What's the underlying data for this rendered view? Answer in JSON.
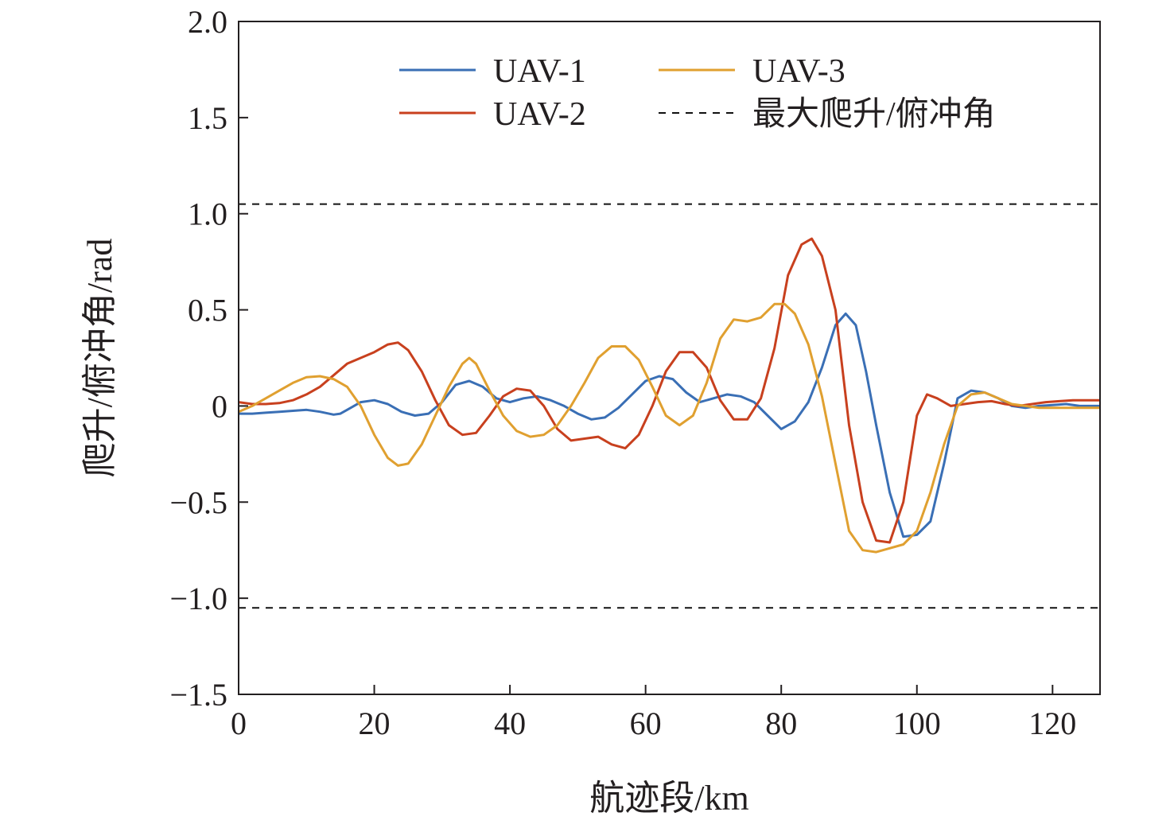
{
  "chart_data": {
    "type": "line",
    "title": "",
    "xlabel": "航迹段/km",
    "ylabel": "爬升/俯冲角/rad",
    "xlim": [
      0,
      127
    ],
    "ylim": [
      -1.5,
      2.0
    ],
    "x_ticks": [
      0,
      20,
      40,
      60,
      80,
      100,
      120
    ],
    "x_tick_labels": [
      "0",
      "20",
      "40",
      "60",
      "80",
      "100",
      "120"
    ],
    "y_ticks": [
      2.0,
      1.5,
      1.0,
      0.5,
      0,
      -0.5,
      -1.0,
      -1.5
    ],
    "y_tick_labels": [
      "2.0",
      "1.5",
      "1.0",
      "0.5",
      "0",
      "−0.5",
      "−1.0",
      "−1.5"
    ],
    "grid": false,
    "legend_position": "top-right",
    "series": [
      {
        "name": "UAV-1",
        "color": "#3a6fb5",
        "style": "solid",
        "x": [
          0,
          2,
          4,
          6,
          8,
          10,
          12,
          14,
          15,
          16,
          18,
          20,
          22,
          24,
          26,
          28,
          30,
          32,
          34,
          36,
          38,
          40,
          42,
          44,
          46,
          48,
          50,
          52,
          54,
          56,
          58,
          60,
          62,
          64,
          66,
          68,
          70,
          72,
          74,
          76,
          78,
          80,
          82,
          84,
          86,
          88,
          89.5,
          91,
          92.5,
          94,
          96,
          98,
          100,
          102,
          104,
          106,
          108,
          110,
          112,
          114,
          116,
          118,
          120,
          122,
          124,
          127
        ],
        "y": [
          -0.04,
          -0.04,
          -0.035,
          -0.03,
          -0.025,
          -0.02,
          -0.03,
          -0.045,
          -0.04,
          -0.02,
          0.02,
          0.03,
          0.01,
          -0.03,
          -0.05,
          -0.04,
          0.02,
          0.11,
          0.13,
          0.1,
          0.04,
          0.02,
          0.04,
          0.05,
          0.03,
          0.0,
          -0.04,
          -0.07,
          -0.06,
          -0.01,
          0.06,
          0.13,
          0.155,
          0.14,
          0.07,
          0.02,
          0.04,
          0.06,
          0.05,
          0.02,
          -0.05,
          -0.12,
          -0.08,
          0.02,
          0.2,
          0.42,
          0.48,
          0.42,
          0.18,
          -0.1,
          -0.45,
          -0.68,
          -0.67,
          -0.6,
          -0.3,
          0.04,
          0.08,
          0.07,
          0.04,
          0.0,
          -0.01,
          0.0,
          0.005,
          0.01,
          0.0,
          0.0
        ]
      },
      {
        "name": "UAV-2",
        "color": "#c8401e",
        "style": "solid",
        "x": [
          0,
          2,
          4,
          6,
          8,
          10,
          12,
          14,
          16,
          18,
          20,
          22,
          23.5,
          25,
          27,
          29,
          31,
          33,
          35,
          37,
          39,
          41,
          43,
          45,
          47,
          49,
          51,
          53,
          55,
          57,
          59,
          61,
          63,
          65,
          67,
          69,
          71,
          73,
          75,
          77,
          79,
          81,
          83,
          84.5,
          86,
          88,
          90,
          92,
          94,
          96,
          98,
          100,
          101.5,
          103,
          105,
          107,
          109,
          111,
          113,
          115,
          117,
          119,
          121,
          123,
          127
        ],
        "y": [
          0.02,
          0.01,
          0.01,
          0.015,
          0.03,
          0.06,
          0.1,
          0.16,
          0.22,
          0.25,
          0.28,
          0.32,
          0.33,
          0.29,
          0.18,
          0.03,
          -0.1,
          -0.15,
          -0.14,
          -0.05,
          0.05,
          0.09,
          0.08,
          0.0,
          -0.12,
          -0.18,
          -0.17,
          -0.16,
          -0.2,
          -0.22,
          -0.15,
          0.0,
          0.18,
          0.28,
          0.28,
          0.2,
          0.03,
          -0.07,
          -0.07,
          0.04,
          0.3,
          0.68,
          0.84,
          0.87,
          0.78,
          0.5,
          -0.1,
          -0.5,
          -0.7,
          -0.71,
          -0.5,
          -0.05,
          0.06,
          0.04,
          0.0,
          0.01,
          0.02,
          0.025,
          0.01,
          0.0,
          0.01,
          0.02,
          0.025,
          0.03,
          0.03
        ]
      },
      {
        "name": "UAV-3",
        "color": "#e0a030",
        "style": "solid",
        "x": [
          0,
          2,
          4,
          6,
          8,
          10,
          12,
          14,
          16,
          18,
          20,
          22,
          23.5,
          25,
          27,
          29,
          31,
          33,
          34,
          35,
          37,
          39,
          41,
          43,
          45,
          47,
          49,
          51,
          53,
          55,
          57,
          59,
          61,
          63,
          65,
          67,
          69,
          71,
          73,
          75,
          77,
          79,
          80.5,
          82,
          84,
          86,
          88,
          90,
          92,
          94,
          96,
          98,
          100,
          102,
          104,
          106,
          108,
          110,
          112,
          114,
          116,
          118,
          120,
          122,
          124,
          127
        ],
        "y": [
          -0.03,
          0.0,
          0.04,
          0.08,
          0.12,
          0.15,
          0.155,
          0.14,
          0.1,
          0.0,
          -0.15,
          -0.27,
          -0.31,
          -0.3,
          -0.2,
          -0.05,
          0.1,
          0.22,
          0.25,
          0.22,
          0.08,
          -0.05,
          -0.13,
          -0.16,
          -0.15,
          -0.1,
          0.0,
          0.12,
          0.25,
          0.31,
          0.31,
          0.24,
          0.1,
          -0.05,
          -0.1,
          -0.05,
          0.12,
          0.35,
          0.45,
          0.44,
          0.46,
          0.53,
          0.53,
          0.48,
          0.32,
          0.05,
          -0.3,
          -0.65,
          -0.75,
          -0.76,
          -0.74,
          -0.72,
          -0.65,
          -0.45,
          -0.2,
          0.0,
          0.06,
          0.07,
          0.04,
          0.01,
          0.0,
          -0.01,
          -0.01,
          -0.01,
          -0.01,
          -0.01
        ]
      },
      {
        "name": "最大爬升/俯冲角",
        "color": "#111111",
        "style": "dashed",
        "y_const": [
          1.05,
          -1.05
        ]
      }
    ]
  }
}
